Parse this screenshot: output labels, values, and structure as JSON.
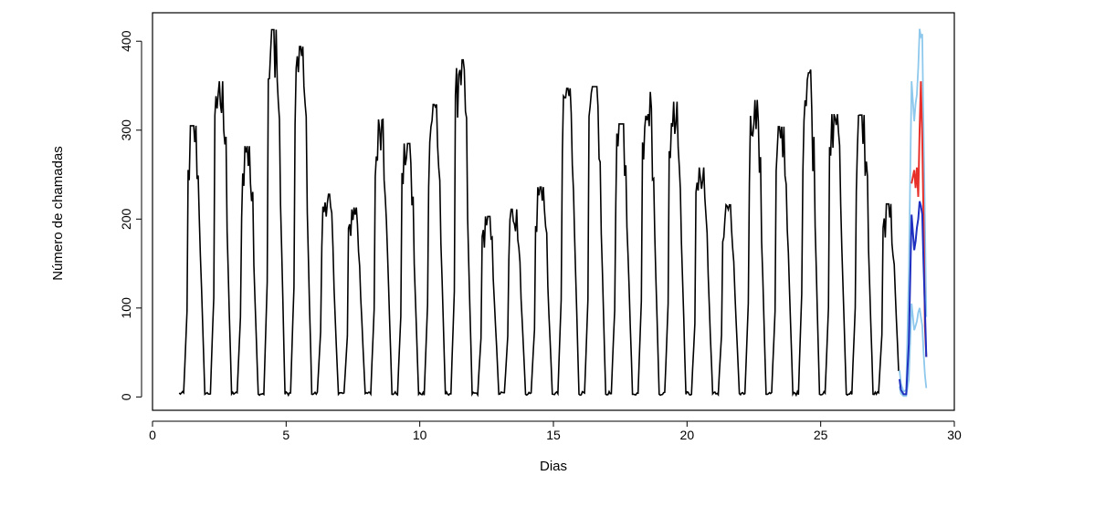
{
  "chart_data": {
    "type": "line",
    "title": "",
    "xlabel": "Dias",
    "ylabel": "Número de chamadas",
    "xlim": [
      0,
      30
    ],
    "ylim": [
      -15,
      432
    ],
    "x_ticks": [
      "0",
      "5",
      "10",
      "15",
      "20",
      "25",
      "30"
    ],
    "y_ticks": [
      "0",
      "100",
      "200",
      "300",
      "400"
    ],
    "grid": false,
    "legend": "none",
    "colors": {
      "observed": "#000000",
      "forecast_point": "#1f2fbf",
      "forecast_interval": "#8ec8ec",
      "test_observed": "#e8302a"
    },
    "daily_peaks": [
      {
        "day": 1,
        "peak": 305
      },
      {
        "day": 2,
        "peak": 355
      },
      {
        "day": 3,
        "peak": 282
      },
      {
        "day": 4,
        "peak": 413
      },
      {
        "day": 5,
        "peak": 394
      },
      {
        "day": 6,
        "peak": 228
      },
      {
        "day": 7,
        "peak": 213
      },
      {
        "day": 8,
        "peak": 312
      },
      {
        "day": 9,
        "peak": 285
      },
      {
        "day": 10,
        "peak": 329
      },
      {
        "day": 11,
        "peak": 379
      },
      {
        "day": 12,
        "peak": 203
      },
      {
        "day": 13,
        "peak": 211
      },
      {
        "day": 14,
        "peak": 236
      },
      {
        "day": 15,
        "peak": 347
      },
      {
        "day": 16,
        "peak": 349
      },
      {
        "day": 17,
        "peak": 307
      },
      {
        "day": 18,
        "peak": 343
      },
      {
        "day": 19,
        "peak": 332
      },
      {
        "day": 20,
        "peak": 258
      },
      {
        "day": 21,
        "peak": 216
      },
      {
        "day": 22,
        "peak": 334
      },
      {
        "day": 23,
        "peak": 304
      },
      {
        "day": 24,
        "peak": 368
      },
      {
        "day": 25,
        "peak": 318
      },
      {
        "day": 26,
        "peak": 317
      },
      {
        "day": 27,
        "peak": 217
      },
      {
        "day": 28,
        "peak": 236
      }
    ],
    "forecast": {
      "x": [
        27.95,
        28.0,
        28.1,
        28.2,
        28.3,
        28.4,
        28.5,
        28.55,
        28.6,
        28.65,
        28.7,
        28.75,
        28.8,
        28.85,
        28.9,
        28.95
      ],
      "point": [
        20,
        8,
        3,
        3,
        60,
        205,
        165,
        175,
        190,
        200,
        220,
        215,
        205,
        150,
        100,
        45
      ],
      "upper": [
        30,
        15,
        6,
        8,
        140,
        355,
        310,
        330,
        340,
        370,
        414,
        405,
        408,
        300,
        200,
        90
      ],
      "lower": [
        12,
        4,
        1,
        1,
        20,
        105,
        75,
        80,
        85,
        95,
        100,
        90,
        80,
        50,
        25,
        10
      ],
      "observed": [
        null,
        null,
        null,
        null,
        null,
        240,
        255,
        235,
        258,
        225,
        300,
        355,
        290,
        200,
        80,
        45
      ]
    }
  }
}
